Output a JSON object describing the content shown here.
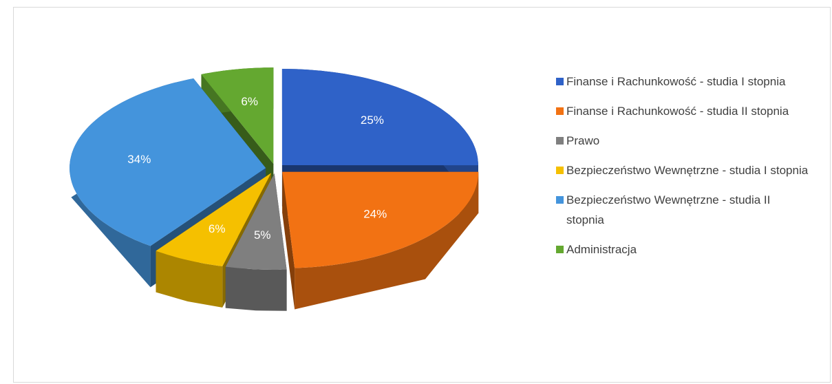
{
  "chart_data": {
    "type": "pie",
    "categories": [
      "Finanse i Rachunkowość - studia I stopnia",
      "Finanse i Rachunkowość - studia II stopnia",
      "Prawo",
      "Bezpieczeństwo Wewnętrzne - studia I stopnia",
      "Bezpieczeństwo Wewnętrzne - studia II stopnia",
      "Administracja"
    ],
    "values": [
      25,
      24,
      5,
      6,
      34,
      6
    ],
    "value_labels": [
      "25%",
      "24%",
      "5%",
      "6%",
      "34%",
      "6%"
    ],
    "colors": [
      "#2f62c8",
      "#f27213",
      "#7f7f7f",
      "#f5c000",
      "#4494dc",
      "#64a830"
    ],
    "legend": "right"
  }
}
